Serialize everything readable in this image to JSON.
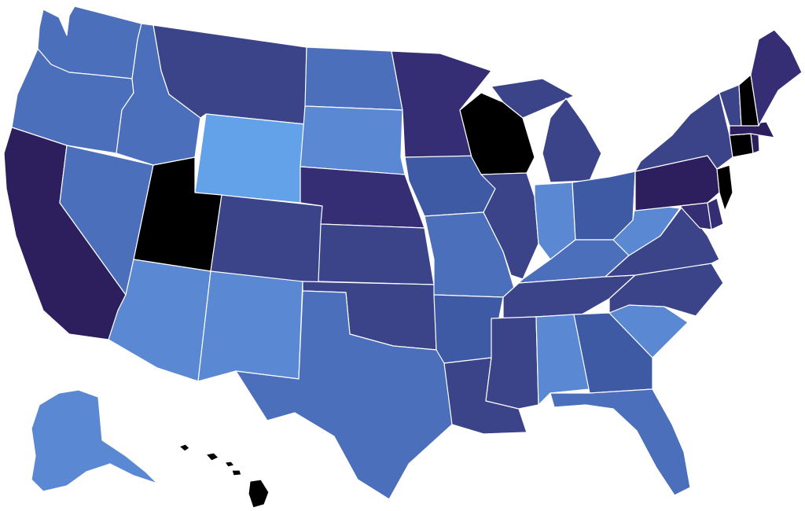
{
  "map": {
    "colors": {
      "c0": "#000000",
      "c1": "#2d1f5e",
      "c2": "#352e75",
      "c3": "#3b4488",
      "c4": "#3f5aa5",
      "c5": "#4b6fba",
      "c6": "#5a88d2",
      "c7": "#63a2e8"
    },
    "states": [
      {
        "code": "WA",
        "color_class": "c5"
      },
      {
        "code": "OR",
        "color_class": "c5"
      },
      {
        "code": "CA",
        "color_class": "c1"
      },
      {
        "code": "NV",
        "color_class": "c5"
      },
      {
        "code": "ID",
        "color_class": "c5"
      },
      {
        "code": "MT",
        "color_class": "c3"
      },
      {
        "code": "WY",
        "color_class": "c7"
      },
      {
        "code": "UT",
        "color_class": "c0"
      },
      {
        "code": "AZ",
        "color_class": "c6"
      },
      {
        "code": "CO",
        "color_class": "c3"
      },
      {
        "code": "NM",
        "color_class": "c6"
      },
      {
        "code": "ND",
        "color_class": "c5"
      },
      {
        "code": "SD",
        "color_class": "c6"
      },
      {
        "code": "NE",
        "color_class": "c2"
      },
      {
        "code": "KS",
        "color_class": "c3"
      },
      {
        "code": "OK",
        "color_class": "c3"
      },
      {
        "code": "TX",
        "color_class": "c5"
      },
      {
        "code": "MN",
        "color_class": "c2"
      },
      {
        "code": "IA",
        "color_class": "c4"
      },
      {
        "code": "MO",
        "color_class": "c5"
      },
      {
        "code": "AR",
        "color_class": "c4"
      },
      {
        "code": "LA",
        "color_class": "c3"
      },
      {
        "code": "WI",
        "color_class": "c0"
      },
      {
        "code": "IL",
        "color_class": "c3"
      },
      {
        "code": "MI",
        "color_class": "c3"
      },
      {
        "code": "IN",
        "color_class": "c6"
      },
      {
        "code": "OH",
        "color_class": "c4"
      },
      {
        "code": "KY",
        "color_class": "c5"
      },
      {
        "code": "TN",
        "color_class": "c3"
      },
      {
        "code": "MS",
        "color_class": "c3"
      },
      {
        "code": "AL",
        "color_class": "c6"
      },
      {
        "code": "GA",
        "color_class": "c4"
      },
      {
        "code": "FL",
        "color_class": "c5"
      },
      {
        "code": "SC",
        "color_class": "c6"
      },
      {
        "code": "NC",
        "color_class": "c3"
      },
      {
        "code": "VA",
        "color_class": "c3"
      },
      {
        "code": "WV",
        "color_class": "c6"
      },
      {
        "code": "PA",
        "color_class": "c1"
      },
      {
        "code": "NY",
        "color_class": "c3"
      },
      {
        "code": "MD",
        "color_class": "c2"
      },
      {
        "code": "DE",
        "color_class": "c2"
      },
      {
        "code": "NJ",
        "color_class": "c0"
      },
      {
        "code": "CT",
        "color_class": "c0"
      },
      {
        "code": "RI",
        "color_class": "c1"
      },
      {
        "code": "MA",
        "color_class": "c1"
      },
      {
        "code": "VT",
        "color_class": "c3"
      },
      {
        "code": "NH",
        "color_class": "c0"
      },
      {
        "code": "ME",
        "color_class": "c2"
      },
      {
        "code": "AK",
        "color_class": "c6"
      },
      {
        "code": "HI",
        "color_class": "c0"
      }
    ]
  }
}
